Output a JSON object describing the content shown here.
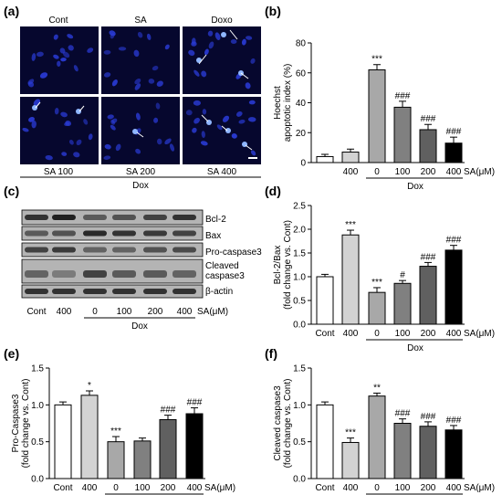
{
  "figure": {
    "panels": {
      "a": "(a)",
      "b": "(b)",
      "c": "(c)",
      "d": "(d)",
      "e": "(e)",
      "f": "(f)"
    },
    "micro": {
      "top_labels": [
        "Cont",
        "SA",
        "Doxo"
      ],
      "bottom_labels": [
        "SA 100",
        "SA 200",
        "SA 400"
      ],
      "group_label": "Dox"
    },
    "western": {
      "bands": [
        "Bcl-2",
        "Bax",
        "Pro-caspase3",
        "Cleaved",
        "caspase3",
        "β-actin"
      ],
      "lanes": [
        "Cont",
        "400",
        "0",
        "100",
        "200",
        "400"
      ],
      "unit": "SA(μM)",
      "group_label": "Dox"
    },
    "colors": {
      "cont": "#ffffff",
      "sa400": "#d3d3d3",
      "dox0": "#a8a8a8",
      "dox100": "#808080",
      "dox200": "#606060",
      "dox400": "#000000",
      "fluor_bg": "#06072e",
      "nucleus": "#2a3bd6"
    }
  },
  "chart_data": [
    {
      "type": "bar",
      "panel": "b",
      "ylabel_lines": [
        "Hoechst",
        "apoptotic index (%)"
      ],
      "categories": [
        "",
        "400",
        "0",
        "100",
        "200",
        "400"
      ],
      "values": [
        4,
        7,
        62,
        37,
        22,
        13
      ],
      "errors": [
        1.5,
        2,
        3.5,
        4,
        3.5,
        4
      ],
      "annotations": [
        "",
        "",
        "***",
        "###",
        "###",
        "###"
      ],
      "ylim": [
        0,
        80
      ],
      "yticks": [
        "0",
        "20",
        "40",
        "60",
        "80"
      ],
      "unit": "SA(μM)",
      "group_label": "Dox"
    },
    {
      "type": "bar",
      "panel": "d",
      "ylabel_lines": [
        "Bcl-2/Bax",
        "(fold change vs. Cont)"
      ],
      "categories": [
        "Cont",
        "400",
        "0",
        "100",
        "200",
        "400"
      ],
      "values": [
        1.0,
        1.88,
        0.67,
        0.86,
        1.22,
        1.56
      ],
      "errors": [
        0.05,
        0.1,
        0.1,
        0.06,
        0.08,
        0.1
      ],
      "annotations": [
        "",
        "***",
        "***",
        "#",
        "###",
        "###"
      ],
      "ylim": [
        0,
        2.5
      ],
      "yticks": [
        "0.0",
        "0.5",
        "1.0",
        "1.5",
        "2.0",
        "2.5"
      ],
      "unit": "SA(μM)",
      "group_label": "Dox"
    },
    {
      "type": "bar",
      "panel": "e",
      "ylabel_lines": [
        "Pro-Caspase3",
        "(fold change vs. Cont)"
      ],
      "categories": [
        "Cont",
        "400",
        "0",
        "100",
        "200",
        "400"
      ],
      "values": [
        1.0,
        1.13,
        0.5,
        0.51,
        0.8,
        0.88
      ],
      "errors": [
        0.04,
        0.06,
        0.07,
        0.04,
        0.06,
        0.08
      ],
      "annotations": [
        "",
        "*",
        "***",
        "",
        "###",
        "###"
      ],
      "ylim": [
        0,
        1.5
      ],
      "yticks": [
        "0.0",
        "0.5",
        "1.0",
        "1.5"
      ],
      "unit": "SA(μM)",
      "group_label": "Dox"
    },
    {
      "type": "bar",
      "panel": "f",
      "ylabel_lines": [
        "Cleaved caspase3",
        "(fold change vs. Cont)"
      ],
      "categories": [
        "Cont",
        "400",
        "0",
        "100",
        "200",
        "400"
      ],
      "values": [
        1.0,
        0.49,
        1.12,
        0.75,
        0.71,
        0.66
      ],
      "errors": [
        0.04,
        0.06,
        0.04,
        0.06,
        0.06,
        0.06
      ],
      "annotations": [
        "",
        "***",
        "**",
        "###",
        "###",
        "###"
      ],
      "ylim": [
        0,
        1.5
      ],
      "yticks": [
        "0.0",
        "0.5",
        "1.0",
        "1.5"
      ],
      "unit": "SA(μM)",
      "group_label": "Dox"
    }
  ]
}
